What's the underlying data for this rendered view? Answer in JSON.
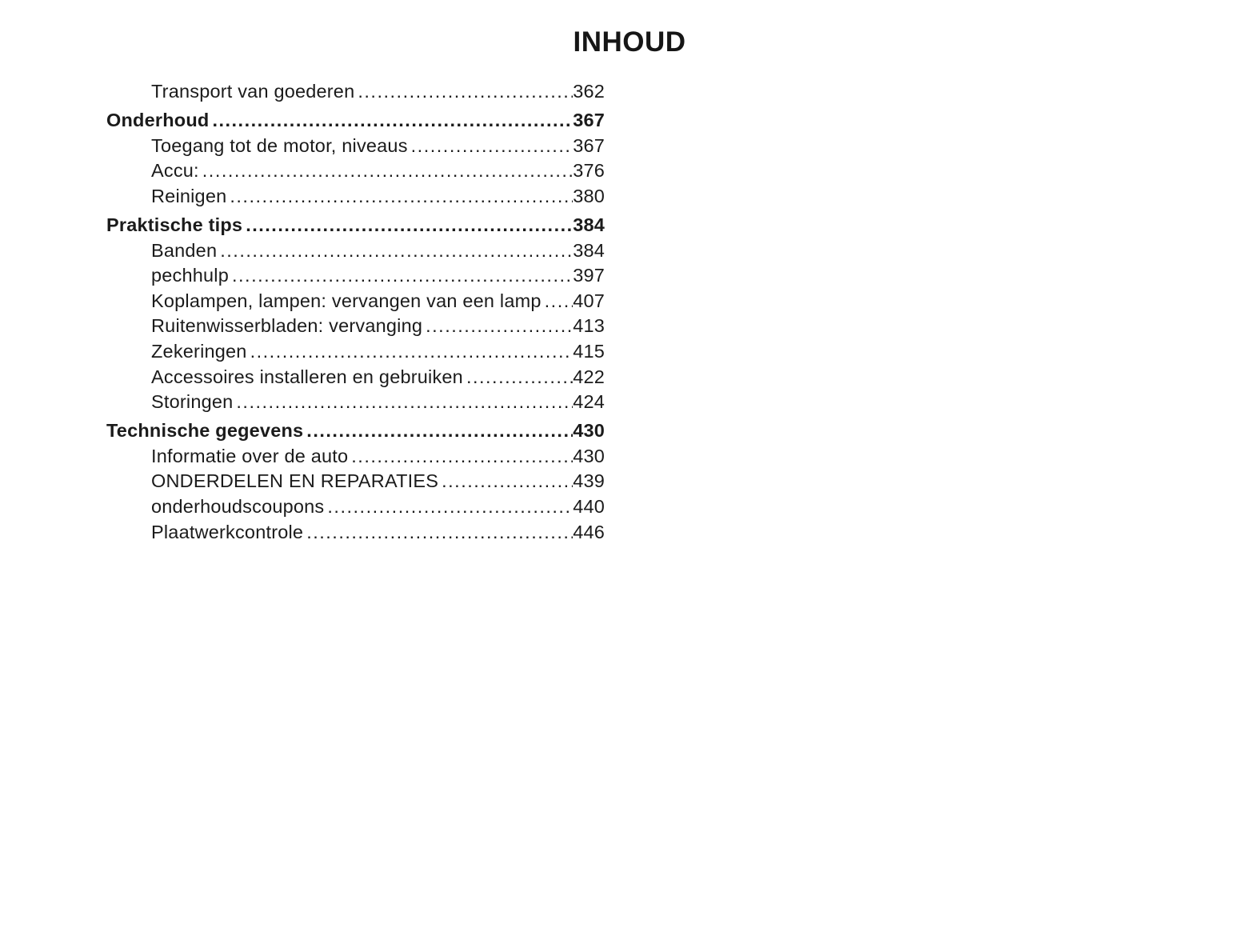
{
  "page": {
    "title": "INHOUD",
    "background_color": "#ffffff",
    "text_color": "#1b1b1b"
  },
  "toc": {
    "entries": [
      {
        "label": "Transport van goederen",
        "page": "362",
        "level": "sub"
      },
      {
        "label": "Onderhoud",
        "page": "367",
        "level": "section"
      },
      {
        "label": "Toegang tot de motor, niveaus",
        "page": "367",
        "level": "sub"
      },
      {
        "label": "Accu:",
        "page": "376",
        "level": "sub"
      },
      {
        "label": "Reinigen",
        "page": "380",
        "level": "sub"
      },
      {
        "label": "Praktische tips",
        "page": "384",
        "level": "section"
      },
      {
        "label": "Banden",
        "page": "384",
        "level": "sub"
      },
      {
        "label": "pechhulp",
        "page": "397",
        "level": "sub"
      },
      {
        "label": "Koplampen, lampen: vervangen van een lamp",
        "page": "407",
        "level": "sub"
      },
      {
        "label": "Ruitenwisserbladen: vervanging",
        "page": "413",
        "level": "sub"
      },
      {
        "label": "Zekeringen",
        "page": "415",
        "level": "sub"
      },
      {
        "label": "Accessoires installeren en gebruiken",
        "page": "422",
        "level": "sub"
      },
      {
        "label": "Storingen",
        "page": "424",
        "level": "sub"
      },
      {
        "label": "Technische gegevens",
        "page": "430",
        "level": "section"
      },
      {
        "label": "Informatie over de auto",
        "page": "430",
        "level": "sub"
      },
      {
        "label": "ONDERDELEN EN REPARATIES",
        "page": "439",
        "level": "sub"
      },
      {
        "label": "onderhoudscoupons",
        "page": "440",
        "level": "sub"
      },
      {
        "label": "Plaatwerkcontrole",
        "page": "446",
        "level": "sub"
      }
    ]
  }
}
